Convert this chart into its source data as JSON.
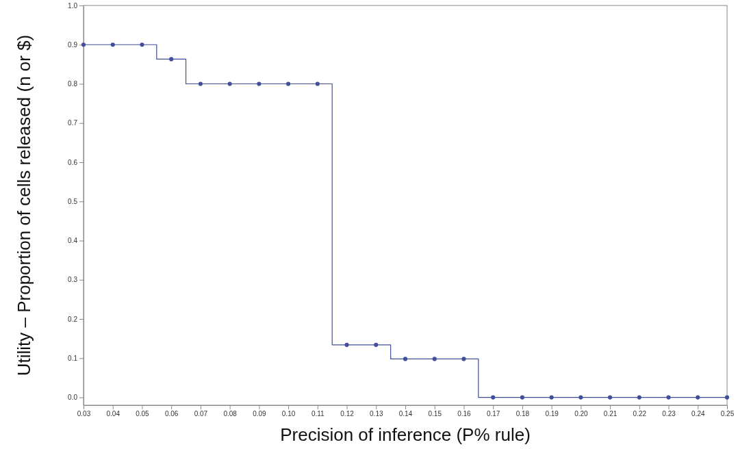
{
  "chart_data": {
    "type": "step",
    "xlabel": "Precision of inference (P% rule)",
    "ylabel": "Utility – Proportion of cells released (n or $)",
    "x": [
      0.03,
      0.04,
      0.05,
      0.06,
      0.07,
      0.08,
      0.09,
      0.1,
      0.11,
      0.12,
      0.13,
      0.14,
      0.15,
      0.16,
      0.17,
      0.18,
      0.19,
      0.2,
      0.21,
      0.22,
      0.23,
      0.24,
      0.25
    ],
    "series": [
      {
        "color": "#3f4f9a",
        "values": [
          0.9,
          0.9,
          0.9,
          0.863,
          0.8,
          0.8,
          0.8,
          0.8,
          0.8,
          0.134,
          0.134,
          0.098,
          0.098,
          0.098,
          0,
          0,
          0,
          0,
          0,
          0,
          0,
          0,
          0
        ]
      }
    ],
    "marker": "circle",
    "grid": false,
    "xlim": [
      0.03,
      0.25
    ],
    "xticks": [
      {
        "value": 0.03,
        "label": "0.03"
      },
      {
        "value": 0.04,
        "label": "0.04"
      },
      {
        "value": 0.05,
        "label": "0.05"
      },
      {
        "value": 0.06,
        "label": "0.06"
      },
      {
        "value": 0.07,
        "label": "0.07"
      },
      {
        "value": 0.08,
        "label": "0.08"
      },
      {
        "value": 0.09,
        "label": "0.09"
      },
      {
        "value": 0.1,
        "label": "0.10"
      },
      {
        "value": 0.11,
        "label": "0.11"
      },
      {
        "value": 0.12,
        "label": "0.12"
      },
      {
        "value": 0.13,
        "label": "0.13"
      },
      {
        "value": 0.14,
        "label": "0.14"
      },
      {
        "value": 0.15,
        "label": "0.15"
      },
      {
        "value": 0.16,
        "label": "0.16"
      },
      {
        "value": 0.17,
        "label": "0.17"
      },
      {
        "value": 0.18,
        "label": "0.18"
      },
      {
        "value": 0.19,
        "label": "0.19"
      },
      {
        "value": 0.2,
        "label": "0.20"
      },
      {
        "value": 0.21,
        "label": "0.21"
      },
      {
        "value": 0.22,
        "label": "0.22"
      },
      {
        "value": 0.23,
        "label": "0.23"
      },
      {
        "value": 0.24,
        "label": "0.24"
      },
      {
        "value": 0.25,
        "label": "0.25"
      }
    ],
    "ylim": [
      -0.02,
      1.0
    ],
    "yticks": [
      {
        "value": 0,
        "label": "0.0"
      },
      {
        "value": 0.1,
        "label": "0.1"
      },
      {
        "value": 0.2,
        "label": "0.2"
      },
      {
        "value": 0.3,
        "label": "0.3"
      },
      {
        "value": 0.4,
        "label": "0.4"
      },
      {
        "value": 0.5,
        "label": "0.5"
      },
      {
        "value": 0.6,
        "label": "0.6"
      },
      {
        "value": 0.7,
        "label": "0.7"
      },
      {
        "value": 0.8,
        "label": "0.8"
      },
      {
        "value": 0.9,
        "label": "0.9"
      },
      {
        "value": 1.0,
        "label": "1.0"
      }
    ]
  }
}
